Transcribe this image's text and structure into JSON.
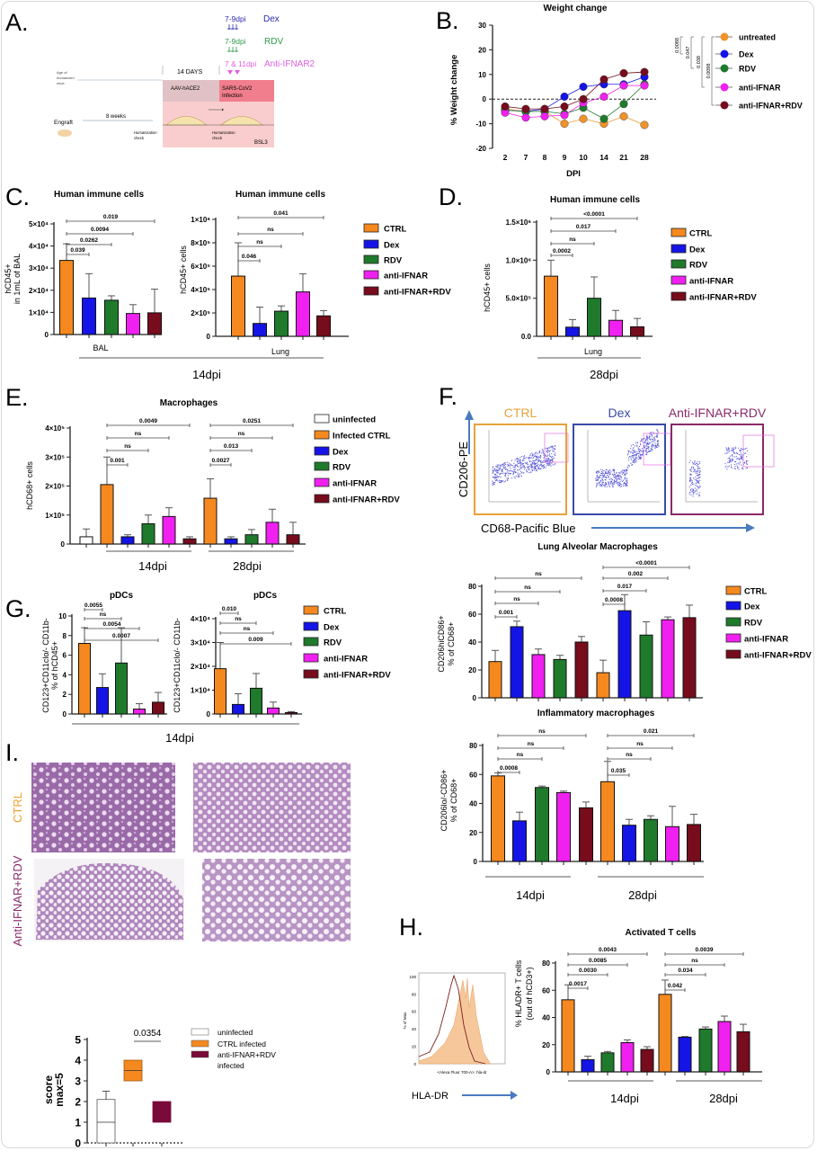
{
  "panel_letters": {
    "a": "A.",
    "b": "B.",
    "c": "C.",
    "d": "D.",
    "e": "E.",
    "f": "F.",
    "g": "G.",
    "h": "H.",
    "i": "I."
  },
  "colors": {
    "CTRL": "#f5891f",
    "Infected CTRL": "#f5891f",
    "untreated": "#f0932b",
    "uninfected": "#ffffff",
    "Dex": "#1414e6",
    "RDV": "#1f7a2c",
    "anti-IFNAR": "#f020f0",
    "anti-IFNAR+RDV": "#760c1c",
    "CTRL infected": "#f5891f",
    "anti-IFNAR+RDV infected": "#7a0a3a"
  },
  "schematic": {
    "dex_timing": "7-9dpi",
    "dex_label": "Dex",
    "rdv_timing": "7-9dpi",
    "rdv_label": "RDV",
    "ifnar_timing": "7 & 11dpi",
    "ifnar_label": "Anti-IFNAR2",
    "days_label": "14 DAYS",
    "age_line1": "Age of",
    "age_line2": "humanized",
    "age_line3": "mice:",
    "aav_label": "AAV-hACE2",
    "infection_line1": "SARS-CoV2",
    "infection_line2": "Infection",
    "bsl3_label": "BSL3",
    "engraft_label": "Engraft",
    "weeks_label": "8 weeks",
    "check1_line1": "Humanization",
    "check1_line2": "check",
    "check2_line1": "Humanization",
    "check2_line2": "check"
  },
  "legends": {
    "b": [
      "untreated",
      "Dex",
      "RDV",
      "anti-IFNAR",
      "anti-IFNAR+RDV"
    ],
    "b_pvalues": [
      "0.0088",
      "0.047",
      "0.038",
      "0.0098"
    ],
    "c": [
      "CTRL",
      "Dex",
      "RDV",
      "anti-IFNAR",
      "anti-IFNAR+RDV"
    ],
    "d": [
      "CTRL",
      "Dex",
      "RDV",
      "anti-IFNAR",
      "anti-IFNAR+RDV"
    ],
    "e": [
      "uninfected",
      "Infected CTRL",
      "Dex",
      "RDV",
      "anti-IFNAR",
      "anti-IFNAR+RDV"
    ],
    "f": [
      "CTRL",
      "Dex",
      "RDV",
      "anti-IFNAR",
      "anti-IFNAR+RDV"
    ],
    "g": [
      "CTRL",
      "Dex",
      "RDV",
      "anti-IFNAR",
      "anti-IFNAR+RDV"
    ],
    "i": [
      "uninfected",
      "CTRL infected",
      "anti-IFNAR+RDV",
      "infected"
    ]
  },
  "shared_labels": {
    "c_timepoint": "14dpi",
    "d_timepoint": "28dpi",
    "g_timepoint": "14dpi"
  },
  "flow": {
    "titles": [
      "CTRL",
      "Dex",
      "Anti-IFNAR+RDV"
    ],
    "title_colors": [
      "#e8a23a",
      "#3a4aa8",
      "#8a2a6a"
    ],
    "y_marker": "CD206-PE",
    "x_marker": "CD68-Pacific Blue"
  },
  "histology": {
    "row_labels": [
      "CTRL",
      "Anti-IFNAR+RDV"
    ],
    "row_label_colors": [
      "#f0a030",
      "#8a2a6a"
    ]
  },
  "histogram": {
    "x_marker": "HLA-DR",
    "y_ticks": [
      "0",
      "20",
      "40",
      "60",
      "80",
      "100"
    ],
    "y_axis": "% of Max",
    "x_axis": "<Alexa Fluor 700-A>: hla-dr"
  },
  "chart_data": [
    {
      "type": "line",
      "title": "Weight change",
      "xlabel": "DPI",
      "ylabel": "% Weight change",
      "x": [
        2,
        7,
        8,
        9,
        10,
        14,
        21,
        28
      ],
      "ylim": [
        -20,
        30
      ],
      "yticks": [
        -20,
        -10,
        0,
        10,
        20,
        30
      ],
      "ytick_labels": [
        "-20",
        "-10",
        "0",
        "10",
        "20",
        "30"
      ],
      "xtick_labels": [
        "2",
        "7",
        "8",
        "9",
        "10",
        "14",
        "21",
        "28"
      ],
      "reference_line": 0,
      "series": [
        {
          "name": "untreated",
          "values": [
            -4,
            -5,
            -5,
            -10,
            -8,
            -10,
            -7,
            -10.5
          ]
        },
        {
          "name": "Dex",
          "values": [
            -4.5,
            -5,
            -4,
            1,
            5,
            6,
            6,
            9
          ]
        },
        {
          "name": "RDV",
          "values": [
            -4.5,
            -5,
            -5,
            -6,
            -3.5,
            -8,
            -2,
            6
          ]
        },
        {
          "name": "anti-IFNAR",
          "values": [
            -5.5,
            -7.5,
            -7,
            -6.5,
            -1.5,
            1,
            5.5,
            5.5
          ]
        },
        {
          "name": "anti-IFNAR+RDV",
          "values": [
            -3,
            -4,
            -4,
            -3,
            0,
            8,
            10.5,
            11
          ]
        }
      ],
      "legend": "right"
    },
    {
      "type": "bar",
      "title": "Human immune cells",
      "ylabel": [
        "hCD45+",
        "in 1mL of BAL"
      ],
      "xlabel": "BAL",
      "ylim": [
        0,
        50000
      ],
      "yticks": [
        0,
        10000,
        20000,
        30000,
        40000,
        50000
      ],
      "ytick_labels": [
        "0",
        "1×10⁴",
        "2×10⁴",
        "3×10⁴",
        "4×10⁴",
        "5×10⁴"
      ],
      "bars": [
        "CTRL",
        "Dex",
        "RDV",
        "anti-IFNAR",
        "anti-IFNAR+RDV"
      ],
      "values": [
        33500,
        16500,
        15500,
        9500,
        9800
      ],
      "error_top": [
        41000,
        27500,
        17500,
        13500,
        20500
      ],
      "significance": [
        {
          "pair": [
            0,
            1
          ],
          "p": "0.039"
        },
        {
          "pair": [
            0,
            2
          ],
          "p": "0.0262"
        },
        {
          "pair": [
            0,
            3
          ],
          "p": "0.0094"
        },
        {
          "pair": [
            0,
            4
          ],
          "p": "0.019"
        }
      ]
    },
    {
      "type": "bar",
      "title": "Human immune cells",
      "ylabel": [
        "hCD45+ cells"
      ],
      "xlabel": "Lung",
      "ylim": [
        0,
        1000000
      ],
      "yticks": [
        0,
        200000,
        400000,
        600000,
        800000,
        1000000
      ],
      "ytick_labels": [
        "0",
        "2×10⁵",
        "4×10⁵",
        "6×10⁵",
        "8×10⁵",
        "1×10⁶"
      ],
      "bars": [
        "CTRL",
        "Dex",
        "RDV",
        "anti-IFNAR",
        "anti-IFNAR+RDV"
      ],
      "values": [
        515000,
        110000,
        215000,
        380000,
        175000
      ],
      "error_top": [
        800000,
        250000,
        260000,
        535000,
        220000
      ],
      "significance": [
        {
          "pair": [
            0,
            1
          ],
          "p": "0.046"
        },
        {
          "pair": [
            0,
            2
          ],
          "p": "ns"
        },
        {
          "pair": [
            0,
            3
          ],
          "p": "ns"
        },
        {
          "pair": [
            0,
            4
          ],
          "p": "0.041"
        }
      ]
    },
    {
      "type": "bar",
      "title": "Human immune cells",
      "ylabel": [
        "hCD45+ cells"
      ],
      "xlabel": "Lung",
      "ylim": [
        0,
        1500000
      ],
      "yticks": [
        0,
        500000,
        1000000,
        1500000
      ],
      "ytick_labels": [
        "0.0",
        "5.0×10⁵",
        "1.0×10⁶",
        "1.5×10⁶"
      ],
      "bars": [
        "CTRL",
        "Dex",
        "RDV",
        "anti-IFNAR",
        "anti-IFNAR+RDV"
      ],
      "values": [
        790000,
        120000,
        500000,
        210000,
        125000
      ],
      "error_top": [
        1000000,
        220000,
        780000,
        340000,
        235000
      ],
      "significance": [
        {
          "pair": [
            0,
            1
          ],
          "p": "0.0002"
        },
        {
          "pair": [
            0,
            2
          ],
          "p": "ns"
        },
        {
          "pair": [
            0,
            3
          ],
          "p": "0.017"
        },
        {
          "pair": [
            0,
            4
          ],
          "p": "<0.0001"
        }
      ]
    },
    {
      "type": "bar",
      "title": "Macrophages",
      "ylabel": [
        "hCD68+ cells"
      ],
      "ylim": [
        0,
        400000
      ],
      "yticks": [
        0,
        100000,
        200000,
        300000,
        400000
      ],
      "ytick_labels": [
        "0",
        "1×10⁵",
        "2×10⁵",
        "3×10⁵",
        "4×10⁵"
      ],
      "group_labels": [
        "14dpi",
        "28dpi"
      ],
      "bars": [
        "uninfected",
        "Infected CTRL",
        "Dex",
        "RDV",
        "anti-IFNAR",
        "anti-IFNAR+RDV",
        "Infected CTRL",
        "Dex",
        "RDV",
        "anti-IFNAR",
        "anti-IFNAR+RDV"
      ],
      "values": [
        25000,
        205000,
        25000,
        70000,
        95000,
        18000,
        158000,
        18000,
        32000,
        75000,
        32000
      ],
      "error_top": [
        52000,
        300000,
        32000,
        100000,
        125000,
        25000,
        225000,
        25000,
        50000,
        120000,
        75000
      ],
      "significance": [
        {
          "pair": [
            1,
            2
          ],
          "p": "0.001"
        },
        {
          "pair": [
            1,
            3
          ],
          "p": "ns"
        },
        {
          "pair": [
            1,
            4
          ],
          "p": "ns"
        },
        {
          "pair": [
            1,
            5
          ],
          "p": "0.0049"
        },
        {
          "pair": [
            6,
            7
          ],
          "p": "0.0027"
        },
        {
          "pair": [
            6,
            8
          ],
          "p": "0.013"
        },
        {
          "pair": [
            6,
            9
          ],
          "p": "ns"
        },
        {
          "pair": [
            6,
            10
          ],
          "p": "0.0251"
        }
      ]
    },
    {
      "type": "bar",
      "title": "pDCs",
      "ylabel": [
        "CD123+CD11clo/- CD11b-",
        "% of hCD45+"
      ],
      "ylim": [
        0,
        10
      ],
      "yticks": [
        0,
        2,
        4,
        6,
        8,
        10
      ],
      "ytick_labels": [
        "0",
        "2",
        "4",
        "6",
        "8",
        "10"
      ],
      "bars": [
        "CTRL",
        "Dex",
        "RDV",
        "anti-IFNAR",
        "anti-IFNAR+RDV"
      ],
      "values": [
        7.2,
        2.7,
        5.2,
        0.5,
        1.2
      ],
      "error_top": [
        8.8,
        4.1,
        8.8,
        1.05,
        2.2
      ],
      "significance": [
        {
          "pair": [
            0,
            1
          ],
          "p": "0.0055"
        },
        {
          "pair": [
            0,
            2
          ],
          "p": "ns"
        },
        {
          "pair": [
            0,
            3
          ],
          "p": "0.0054"
        },
        {
          "pair": [
            0,
            4
          ],
          "p": "0.0007"
        }
      ]
    },
    {
      "type": "bar",
      "title": "pDCs",
      "ylabel": [
        "CD123+CD11clo/- CD11b-"
      ],
      "ylim": [
        0,
        40000
      ],
      "yticks": [
        0,
        10000,
        20000,
        30000,
        40000
      ],
      "ytick_labels": [
        "0",
        "1×10⁴",
        "2×10⁴",
        "3×10⁴",
        "4×10⁴"
      ],
      "bars": [
        "CTRL",
        "Dex",
        "RDV",
        "anti-IFNAR",
        "anti-IFNAR+RDV"
      ],
      "values": [
        19000,
        4000,
        10800,
        2500,
        600
      ],
      "error_top": [
        30000,
        8500,
        17000,
        5000,
        1000
      ],
      "significance": [
        {
          "pair": [
            0,
            1
          ],
          "p": "0.010"
        },
        {
          "pair": [
            0,
            2
          ],
          "p": "ns"
        },
        {
          "pair": [
            0,
            3
          ],
          "p": "ns"
        },
        {
          "pair": [
            0,
            4
          ],
          "p": "0.009"
        }
      ]
    },
    {
      "type": "bar",
      "title": "Lung Alveolar Macrophages",
      "ylabel": [
        "CD206hiCD86+",
        "% of CD68+"
      ],
      "ylim": [
        0,
        80
      ],
      "yticks": [
        0,
        20,
        40,
        60,
        80
      ],
      "ytick_labels": [
        "0",
        "20",
        "40",
        "60",
        "80"
      ],
      "bars": [
        "CTRL",
        "Dex",
        "anti-IFNAR",
        "RDV",
        "anti-IFNAR+RDV",
        "CTRL",
        "Dex",
        "RDV",
        "anti-IFNAR",
        "anti-IFNAR+RDV"
      ],
      "values": [
        26,
        51,
        31,
        27.5,
        40,
        18,
        62.5,
        45,
        56,
        57.5
      ],
      "error_top": [
        34,
        55,
        35,
        30.5,
        44,
        27,
        74,
        54.5,
        58,
        66.5
      ],
      "significance": [
        {
          "pair": [
            0,
            1
          ],
          "p": "0.001"
        },
        {
          "pair": [
            0,
            2
          ],
          "p": "ns"
        },
        {
          "pair": [
            0,
            3
          ],
          "p": "ns"
        },
        {
          "pair": [
            0,
            4
          ],
          "p": "ns"
        },
        {
          "pair": [
            5,
            6
          ],
          "p": "0.0008"
        },
        {
          "pair": [
            5,
            7
          ],
          "p": "0.017"
        },
        {
          "pair": [
            5,
            8
          ],
          "p": "0.002"
        },
        {
          "pair": [
            5,
            9
          ],
          "p": "<0.0001"
        }
      ]
    },
    {
      "type": "bar",
      "title": "Inflammatory macrophages",
      "ylabel": [
        "CD206lo/-CD86+",
        "% of CD68+"
      ],
      "ylim": [
        0,
        80
      ],
      "yticks": [
        0,
        20,
        40,
        60,
        80
      ],
      "ytick_labels": [
        "0",
        "20",
        "40",
        "60",
        "80"
      ],
      "group_labels": [
        "14dpi",
        "28dpi"
      ],
      "bars": [
        "CTRL",
        "Dex",
        "RDV",
        "anti-IFNAR",
        "anti-IFNAR+RDV",
        "CTRL",
        "Dex",
        "RDV",
        "anti-IFNAR",
        "anti-IFNAR+RDV"
      ],
      "values": [
        59,
        28,
        51,
        47.5,
        37,
        55,
        25,
        29,
        24,
        25.5
      ],
      "error_top": [
        61,
        34,
        52,
        48.5,
        41,
        69,
        29,
        31.5,
        38,
        32.5
      ],
      "significance": [
        {
          "pair": [
            0,
            1
          ],
          "p": "0.0008"
        },
        {
          "pair": [
            0,
            2
          ],
          "p": "ns"
        },
        {
          "pair": [
            0,
            3
          ],
          "p": "ns"
        },
        {
          "pair": [
            0,
            4
          ],
          "p": "ns"
        },
        {
          "pair": [
            5,
            6
          ],
          "p": "0.035"
        },
        {
          "pair": [
            5,
            7
          ],
          "p": "ns"
        },
        {
          "pair": [
            5,
            8
          ],
          "p": "ns"
        },
        {
          "pair": [
            5,
            9
          ],
          "p": "0.021"
        }
      ]
    },
    {
      "type": "bar",
      "title": "Activated T cells",
      "ylabel": [
        "% HLADR+ T cells",
        "(out of hCD3+)"
      ],
      "ylim": [
        0,
        80
      ],
      "yticks": [
        0,
        20,
        40,
        60,
        80
      ],
      "ytick_labels": [
        "0",
        "20",
        "40",
        "60",
        "80"
      ],
      "group_labels": [
        "14dpi",
        "28dpi"
      ],
      "bars": [
        "CTRL",
        "Dex",
        "RDV",
        "anti-IFNAR",
        "anti-IFNAR+RDV",
        "CTRL",
        "Dex",
        "RDV",
        "anti-IFNAR",
        "anti-IFNAR+RDV"
      ],
      "values": [
        53,
        9,
        14,
        21.5,
        16.5,
        57,
        25.5,
        31.5,
        37,
        29.5
      ],
      "error_top": [
        64,
        11.5,
        15,
        23.5,
        18.5,
        67.5,
        26,
        33,
        41,
        35
      ],
      "significance": [
        {
          "pair": [
            0,
            1
          ],
          "p": "0.0017"
        },
        {
          "pair": [
            0,
            2
          ],
          "p": "0.0030"
        },
        {
          "pair": [
            0,
            3
          ],
          "p": "0.0085"
        },
        {
          "pair": [
            0,
            4
          ],
          "p": "0.0043"
        },
        {
          "pair": [
            5,
            6
          ],
          "p": "0.042"
        },
        {
          "pair": [
            5,
            7
          ],
          "p": "0.034"
        },
        {
          "pair": [
            5,
            8
          ],
          "p": "ns"
        },
        {
          "pair": [
            5,
            9
          ],
          "p": "0.0039"
        }
      ]
    },
    {
      "type": "bar",
      "subtype": "floating",
      "ylabel": [
        "score",
        "max=5"
      ],
      "ylim": [
        0,
        5
      ],
      "yticks": [
        0,
        1,
        2,
        3,
        4,
        5
      ],
      "ytick_labels": [
        "0",
        "1",
        "2",
        "3",
        "4",
        "5"
      ],
      "bars": [
        "uninfected",
        "CTRL infected",
        "anti-IFNAR+RDV infected"
      ],
      "low": [
        0,
        3,
        1
      ],
      "high": [
        2.1,
        4,
        2
      ],
      "line": [
        1,
        3.5,
        null
      ],
      "error_top": [
        2.5,
        null,
        null
      ],
      "significance": [
        {
          "pair": [
            1,
            2
          ],
          "p": "0.0354"
        }
      ]
    }
  ]
}
